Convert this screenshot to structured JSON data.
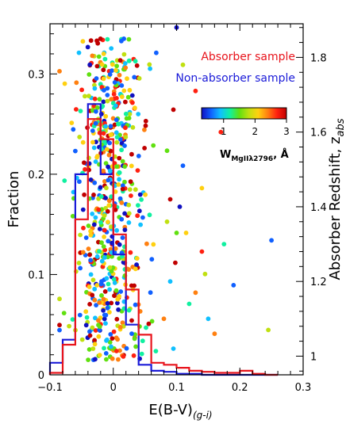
{
  "chart_data": {
    "type": "histogram+scatter",
    "xlabel": "E(B-V)",
    "xlabel_subscript": "(g-i)",
    "ylabel_left": "Fraction",
    "ylabel_right": "Absorber Redshift, z",
    "ylabel_right_subscript": "abs",
    "xlim": [
      -0.1,
      0.3
    ],
    "ylim_left": [
      0,
      0.35
    ],
    "ylim_right": [
      0.95,
      1.89
    ],
    "x_ticks": [
      -0.1,
      0,
      0.1,
      0.2,
      0.3
    ],
    "x_tick_labels": [
      "−0.1",
      "0",
      "0.1",
      "0.2",
      "0.3"
    ],
    "y_left_ticks": [
      0,
      0.1,
      0.2,
      0.3
    ],
    "y_left_tick_labels": [
      "0",
      "0.1",
      "0.2",
      "0.3"
    ],
    "y_right_ticks": [
      1.0,
      1.2,
      1.4,
      1.6,
      1.8
    ],
    "y_right_tick_labels": [
      "1",
      "1.2",
      "1.4",
      "1.6",
      "1.8"
    ],
    "legend": [
      {
        "label": "Absorber sample",
        "color": "#e8141c"
      },
      {
        "label": "Non-absorber sample",
        "color": "#1a1ad8"
      }
    ],
    "bin_edges": [
      -0.1,
      -0.08,
      -0.06,
      -0.04,
      -0.02,
      0,
      0.02,
      0.04,
      0.06,
      0.08,
      0.1,
      0.12,
      0.14,
      0.16,
      0.18,
      0.2,
      0.22,
      0.24,
      0.26
    ],
    "hist_absorber": [
      0.002,
      0.03,
      0.155,
      0.255,
      0.235,
      0.14,
      0.085,
      0.04,
      0.012,
      0.01,
      0.007,
      0.004,
      0.003,
      0.002,
      0.002,
      0.004,
      0.001,
      0
    ],
    "hist_nonabsorber": [
      0.012,
      0.035,
      0.2,
      0.27,
      0.2,
      0.12,
      0.05,
      0.01,
      0.004,
      0.003,
      0.001,
      0.001,
      0,
      0,
      0,
      0,
      0,
      0
    ],
    "colorbar": {
      "label": "W",
      "label_subscript": "MgIIλ2796",
      "label_suffix": ", Å",
      "min": 0.3,
      "max": 3.0,
      "ticks": [
        1,
        2,
        3
      ],
      "tick_labels": [
        "1",
        "2",
        "3"
      ],
      "colors": [
        "#1010c0",
        "#1060ff",
        "#10c0ff",
        "#10f0a0",
        "#60e010",
        "#c0e010",
        "#ffd010",
        "#ff8010",
        "#ff2010",
        "#c00000"
      ]
    },
    "scatter_seed": 7,
    "scatter_count": 620,
    "scatter_outliers": [
      [
        0.1,
        1.88
      ],
      [
        0.11,
        1.78
      ],
      [
        0.095,
        1.66
      ],
      [
        0.085,
        1.55
      ],
      [
        0.09,
        1.42
      ],
      [
        0.1,
        1.33
      ],
      [
        0.13,
        1.71
      ],
      [
        0.15,
        1.64
      ],
      [
        0.17,
        1.6
      ],
      [
        0.175,
        1.3
      ],
      [
        0.14,
        1.28
      ],
      [
        0.12,
        1.14
      ],
      [
        0.13,
        1.17
      ],
      [
        0.15,
        1.1
      ],
      [
        0.16,
        1.06
      ],
      [
        0.095,
        1.02
      ],
      [
        0.08,
        1.1
      ],
      [
        0.09,
        1.2
      ],
      [
        0.14,
        1.45
      ],
      [
        0.11,
        1.51
      ],
      [
        0.115,
        1.33
      ],
      [
        0.25,
        1.31
      ],
      [
        0.245,
        1.07
      ],
      [
        0.19,
        1.19
      ],
      [
        0.145,
        1.22
      ],
      [
        0.105,
        1.4
      ],
      [
        0.085,
        1.36
      ],
      [
        0.098,
        1.25
      ]
    ]
  }
}
